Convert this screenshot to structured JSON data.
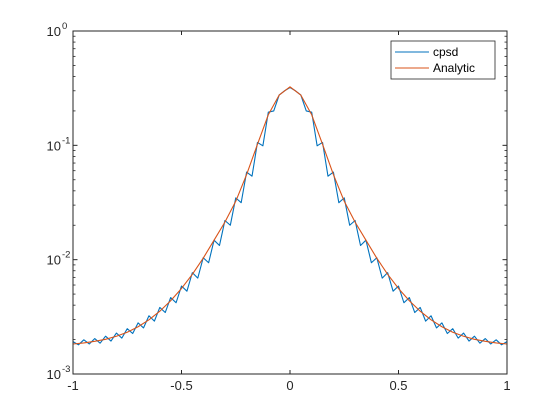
{
  "chart_data": {
    "type": "line",
    "title": "",
    "xlabel": "",
    "ylabel": "",
    "xlim": [
      -1,
      1
    ],
    "ylim": [
      0.001,
      1
    ],
    "yscale": "log",
    "grid": false,
    "legend_position": "top-right",
    "x_ticks": [
      {
        "value": -1,
        "label": "-1"
      },
      {
        "value": -0.5,
        "label": "-0.5"
      },
      {
        "value": 0,
        "label": "0"
      },
      {
        "value": 0.5,
        "label": "0.5"
      },
      {
        "value": 1,
        "label": "1"
      }
    ],
    "y_ticks": [
      {
        "value": 0.001,
        "base": "10",
        "exponent": "-3"
      },
      {
        "value": 0.01,
        "base": "10",
        "exponent": "-2"
      },
      {
        "value": 0.1,
        "base": "10",
        "exponent": "-1"
      },
      {
        "value": 1,
        "base": "10",
        "exponent": "0"
      }
    ],
    "series": [
      {
        "name": "cpsd",
        "color": "#0072BD",
        "x": [
          -1,
          -0.975,
          -0.95,
          -0.925,
          -0.9,
          -0.875,
          -0.85,
          -0.825,
          -0.8,
          -0.775,
          -0.75,
          -0.725,
          -0.7,
          -0.675,
          -0.65,
          -0.625,
          -0.6,
          -0.575,
          -0.55,
          -0.525,
          -0.5,
          -0.475,
          -0.45,
          -0.425,
          -0.4,
          -0.375,
          -0.35,
          -0.325,
          -0.3,
          -0.275,
          -0.25,
          -0.225,
          -0.2,
          -0.175,
          -0.15,
          -0.125,
          -0.1,
          -0.075,
          -0.05,
          -0.025,
          0,
          0.025,
          0.05,
          0.075,
          0.1,
          0.125,
          0.15,
          0.175,
          0.2,
          0.225,
          0.25,
          0.275,
          0.3,
          0.325,
          0.35,
          0.375,
          0.4,
          0.425,
          0.45,
          0.475,
          0.5,
          0.525,
          0.55,
          0.575,
          0.6,
          0.625,
          0.65,
          0.675,
          0.7,
          0.725,
          0.75,
          0.775,
          0.8,
          0.825,
          0.85,
          0.875,
          0.9,
          0.925,
          0.95,
          0.975,
          1
        ],
        "y": [
          0.00192,
          0.0018,
          0.00199,
          0.00183,
          0.00204,
          0.00186,
          0.00214,
          0.00194,
          0.00228,
          0.00206,
          0.00249,
          0.00226,
          0.0028,
          0.00253,
          0.00323,
          0.0029,
          0.00382,
          0.00345,
          0.00466,
          0.0042,
          0.00588,
          0.0053,
          0.0077,
          0.0069,
          0.0104,
          0.0094,
          0.0148,
          0.0133,
          0.022,
          0.02,
          0.0347,
          0.0315,
          0.0584,
          0.0537,
          0.106,
          0.099,
          0.195,
          0.2,
          0.275,
          0.3,
          0.32,
          0.3,
          0.275,
          0.2,
          0.195,
          0.099,
          0.106,
          0.0537,
          0.0584,
          0.0315,
          0.0347,
          0.02,
          0.022,
          0.0133,
          0.0148,
          0.0094,
          0.0104,
          0.0069,
          0.0077,
          0.0053,
          0.00588,
          0.0042,
          0.00466,
          0.00345,
          0.00382,
          0.0029,
          0.00323,
          0.00253,
          0.0028,
          0.00226,
          0.00249,
          0.00206,
          0.00228,
          0.00194,
          0.00214,
          0.00186,
          0.00204,
          0.00183,
          0.00199,
          0.0018,
          0.00192
        ]
      },
      {
        "name": "Analytic",
        "color": "#D95319",
        "x": [
          -1,
          -0.95,
          -0.9,
          -0.85,
          -0.8,
          -0.75,
          -0.7,
          -0.65,
          -0.6,
          -0.55,
          -0.5,
          -0.45,
          -0.4,
          -0.35,
          -0.3,
          -0.25,
          -0.2,
          -0.15,
          -0.1,
          -0.05,
          0,
          0.05,
          0.1,
          0.15,
          0.2,
          0.25,
          0.3,
          0.35,
          0.4,
          0.45,
          0.5,
          0.55,
          0.6,
          0.65,
          0.7,
          0.75,
          0.8,
          0.85,
          0.9,
          0.95,
          1
        ],
        "y": [
          0.00183,
          0.00187,
          0.00193,
          0.00201,
          0.00214,
          0.00232,
          0.00259,
          0.00298,
          0.00354,
          0.00437,
          0.0056,
          0.00745,
          0.0103,
          0.0148,
          0.0213,
          0.0324,
          0.0555,
          0.102,
          0.185,
          0.275,
          0.325,
          0.275,
          0.185,
          0.102,
          0.0555,
          0.0324,
          0.0213,
          0.0148,
          0.0103,
          0.00745,
          0.0056,
          0.00437,
          0.00354,
          0.00298,
          0.00259,
          0.00232,
          0.00214,
          0.00201,
          0.00193,
          0.00187,
          0.00183
        ]
      }
    ]
  }
}
